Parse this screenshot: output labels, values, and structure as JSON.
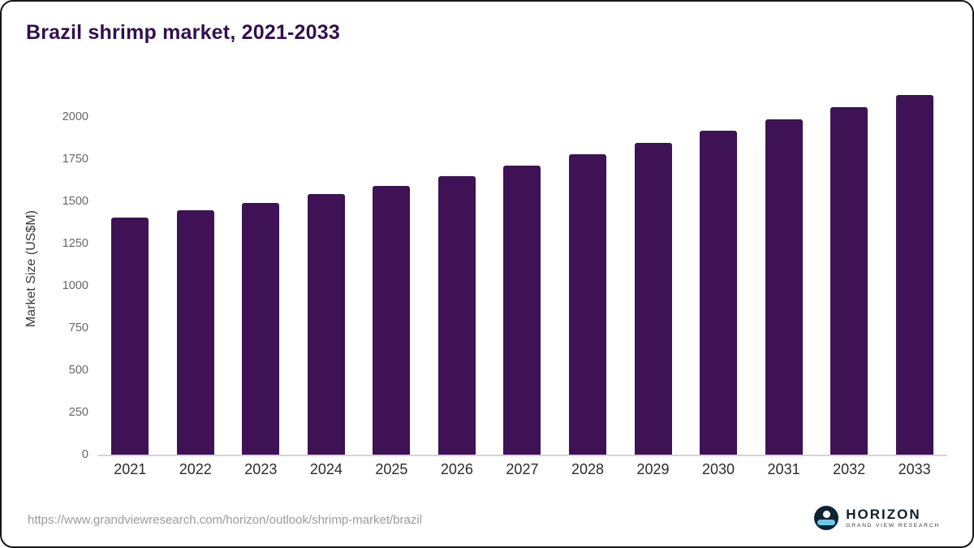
{
  "title": "Brazil shrimp market, 2021-2033",
  "colors": {
    "title": "#31104e",
    "bar": "#3e1254",
    "axis_text": "#666666",
    "x_label_text": "#2b2b2b"
  },
  "chart_data": {
    "type": "bar",
    "title": "Brazil shrimp market, 2021-2033",
    "categories": [
      "2021",
      "2022",
      "2023",
      "2024",
      "2025",
      "2026",
      "2027",
      "2028",
      "2029",
      "2030",
      "2031",
      "2032",
      "2033"
    ],
    "values": [
      1405,
      1445,
      1490,
      1540,
      1590,
      1650,
      1710,
      1775,
      1845,
      1915,
      1985,
      2055,
      2130
    ],
    "xlabel": "",
    "ylabel": "Market Size (US$M)",
    "ylim": [
      0,
      2200
    ],
    "yticks": [
      0,
      250,
      500,
      750,
      1000,
      1250,
      1500,
      1750,
      2000
    ],
    "grid": false,
    "legend": false
  },
  "footer": {
    "source_url": "https://www.grandviewresearch.com/horizon/outlook/shrimp-market/brazil"
  },
  "logo": {
    "name": "HORIZON",
    "subtitle": "GRAND VIEW RESEARCH"
  }
}
